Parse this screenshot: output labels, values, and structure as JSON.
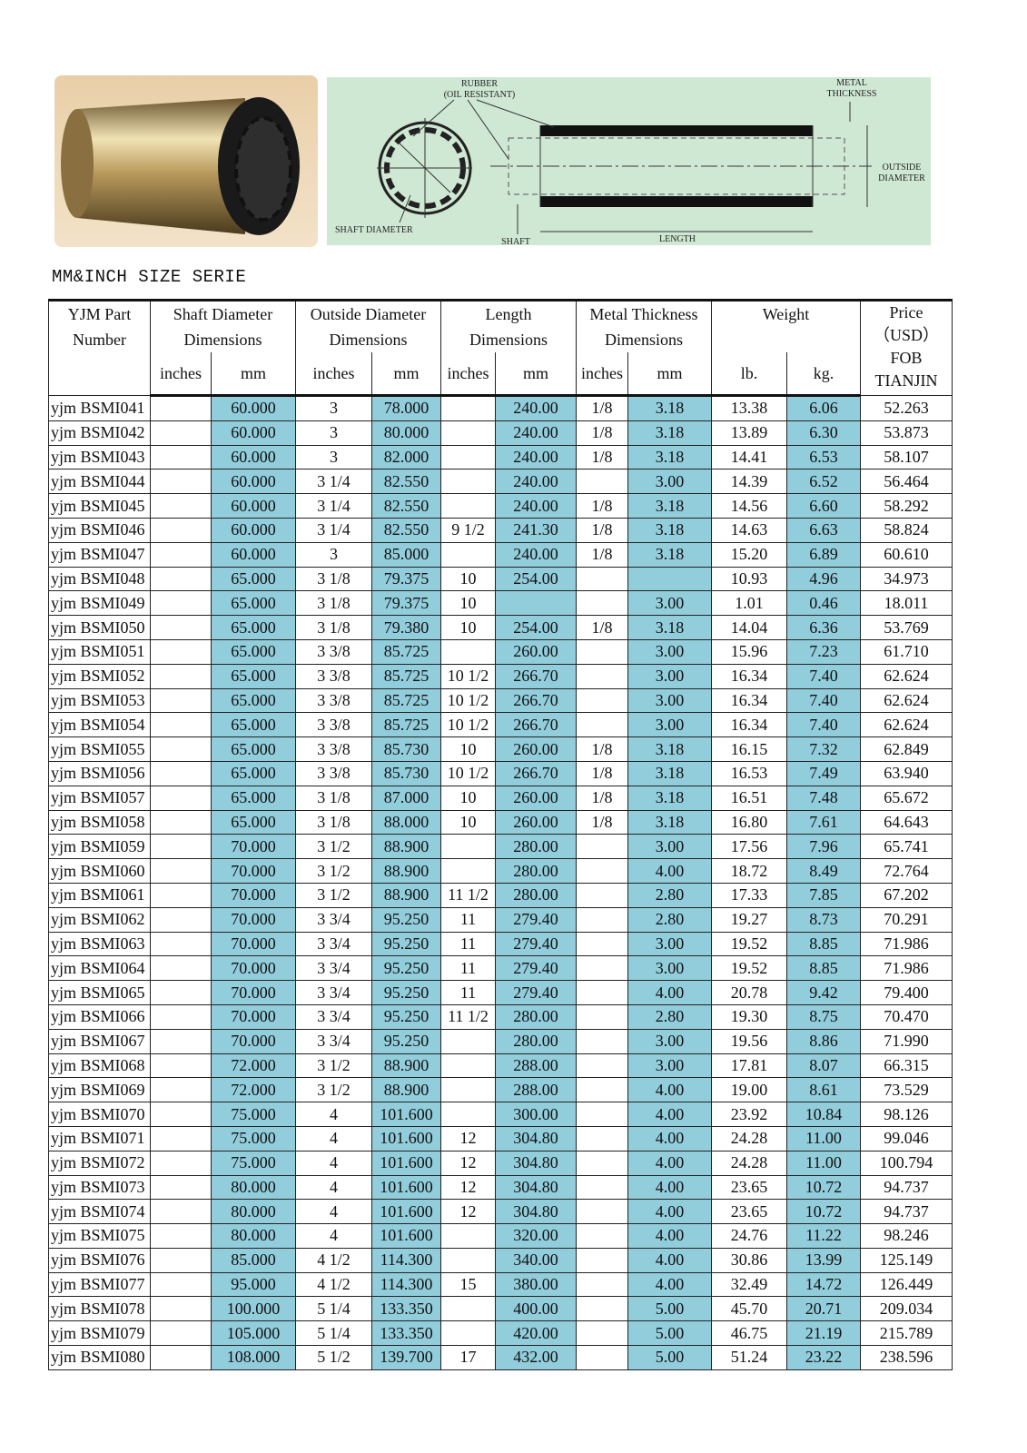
{
  "diagram": {
    "rubber": "RUBBER",
    "oil_resistant": "(OIL RESISTANT)",
    "metal": "METAL",
    "thickness": "THICKNESS",
    "outside": "OUTSIDE",
    "diameter": "DIAMETER",
    "shaft_diameter": "SHAFT DIAMETER",
    "shaft": "SHAFT",
    "length": "LENGTH"
  },
  "header": {
    "title": "MM&INCH SIZE SERIE"
  },
  "table": {
    "columns": {
      "part": [
        "YJM Part",
        "Number"
      ],
      "shaft": [
        "Shaft  Diameter",
        "Dimensions"
      ],
      "outside": [
        "Outside Diameter",
        "Dimensions"
      ],
      "length": [
        "Length",
        "Dimensions"
      ],
      "metal": [
        "Metal Thickness",
        "Dimensions"
      ],
      "weight": "Weight",
      "price": [
        "Price",
        "（USD）",
        "FOB",
        "TIANJIN"
      ]
    },
    "subcolumns": [
      "inches",
      "mm",
      "inches",
      "mm",
      "inches",
      "mm",
      "inches",
      "mm",
      "lb.",
      "kg."
    ],
    "rows": [
      [
        "yjm BSMI041",
        null,
        "60.000",
        "3",
        "78.000",
        null,
        "240.00",
        "1/8",
        "3.18",
        "13.38",
        "6.06",
        "52.263"
      ],
      [
        "yjm BSMI042",
        null,
        "60.000",
        "3",
        "80.000",
        null,
        "240.00",
        "1/8",
        "3.18",
        "13.89",
        "6.30",
        "53.873"
      ],
      [
        "yjm BSMI043",
        null,
        "60.000",
        "3",
        "82.000",
        null,
        "240.00",
        "1/8",
        "3.18",
        "14.41",
        "6.53",
        "58.107"
      ],
      [
        "yjm BSMI044",
        null,
        "60.000",
        "3 1/4",
        "82.550",
        null,
        "240.00",
        null,
        "3.00",
        "14.39",
        "6.52",
        "56.464"
      ],
      [
        "yjm BSMI045",
        null,
        "60.000",
        "3 1/4",
        "82.550",
        null,
        "240.00",
        "1/8",
        "3.18",
        "14.56",
        "6.60",
        "58.292"
      ],
      [
        "yjm BSMI046",
        null,
        "60.000",
        "3 1/4",
        "82.550",
        "9 1/2",
        "241.30",
        "1/8",
        "3.18",
        "14.63",
        "6.63",
        "58.824"
      ],
      [
        "yjm BSMI047",
        null,
        "60.000",
        "3",
        "85.000",
        null,
        "240.00",
        "1/8",
        "3.18",
        "15.20",
        "6.89",
        "60.610"
      ],
      [
        "yjm BSMI048",
        null,
        "65.000",
        "3 1/8",
        "79.375",
        "10",
        "254.00",
        null,
        null,
        "10.93",
        "4.96",
        "34.973"
      ],
      [
        "yjm BSMI049",
        null,
        "65.000",
        "3 1/8",
        "79.375",
        "10",
        null,
        null,
        "3.00",
        "1.01",
        "0.46",
        "18.011"
      ],
      [
        "yjm BSMI050",
        null,
        "65.000",
        "3 1/8",
        "79.380",
        "10",
        "254.00",
        "1/8",
        "3.18",
        "14.04",
        "6.36",
        "53.769"
      ],
      [
        "yjm BSMI051",
        null,
        "65.000",
        "3 3/8",
        "85.725",
        null,
        "260.00",
        null,
        "3.00",
        "15.96",
        "7.23",
        "61.710"
      ],
      [
        "yjm BSMI052",
        null,
        "65.000",
        "3 3/8",
        "85.725",
        "10 1/2",
        "266.70",
        null,
        "3.00",
        "16.34",
        "7.40",
        "62.624"
      ],
      [
        "yjm BSMI053",
        null,
        "65.000",
        "3 3/8",
        "85.725",
        "10 1/2",
        "266.70",
        null,
        "3.00",
        "16.34",
        "7.40",
        "62.624"
      ],
      [
        "yjm BSMI054",
        null,
        "65.000",
        "3 3/8",
        "85.725",
        "10 1/2",
        "266.70",
        null,
        "3.00",
        "16.34",
        "7.40",
        "62.624"
      ],
      [
        "yjm BSMI055",
        null,
        "65.000",
        "3 3/8",
        "85.730",
        "10",
        "260.00",
        "1/8",
        "3.18",
        "16.15",
        "7.32",
        "62.849"
      ],
      [
        "yjm BSMI056",
        null,
        "65.000",
        "3 3/8",
        "85.730",
        "10 1/2",
        "266.70",
        "1/8",
        "3.18",
        "16.53",
        "7.49",
        "63.940"
      ],
      [
        "yjm BSMI057",
        null,
        "65.000",
        "3 1/8",
        "87.000",
        "10",
        "260.00",
        "1/8",
        "3.18",
        "16.51",
        "7.48",
        "65.672"
      ],
      [
        "yjm BSMI058",
        null,
        "65.000",
        "3 1/8",
        "88.000",
        "10",
        "260.00",
        "1/8",
        "3.18",
        "16.80",
        "7.61",
        "64.643"
      ],
      [
        "yjm BSMI059",
        null,
        "70.000",
        "3 1/2",
        "88.900",
        null,
        "280.00",
        null,
        "3.00",
        "17.56",
        "7.96",
        "65.741"
      ],
      [
        "yjm BSMI060",
        null,
        "70.000",
        "3 1/2",
        "88.900",
        null,
        "280.00",
        null,
        "4.00",
        "18.72",
        "8.49",
        "72.764"
      ],
      [
        "yjm BSMI061",
        null,
        "70.000",
        "3 1/2",
        "88.900",
        "11 1/2",
        "280.00",
        null,
        "2.80",
        "17.33",
        "7.85",
        "67.202"
      ],
      [
        "yjm BSMI062",
        null,
        "70.000",
        "3 3/4",
        "95.250",
        "11",
        "279.40",
        null,
        "2.80",
        "19.27",
        "8.73",
        "70.291"
      ],
      [
        "yjm BSMI063",
        null,
        "70.000",
        "3 3/4",
        "95.250",
        "11",
        "279.40",
        null,
        "3.00",
        "19.52",
        "8.85",
        "71.986"
      ],
      [
        "yjm BSMI064",
        null,
        "70.000",
        "3 3/4",
        "95.250",
        "11",
        "279.40",
        null,
        "3.00",
        "19.52",
        "8.85",
        "71.986"
      ],
      [
        "yjm BSMI065",
        null,
        "70.000",
        "3 3/4",
        "95.250",
        "11",
        "279.40",
        null,
        "4.00",
        "20.78",
        "9.42",
        "79.400"
      ],
      [
        "yjm BSMI066",
        null,
        "70.000",
        "3 3/4",
        "95.250",
        "11 1/2",
        "280.00",
        null,
        "2.80",
        "19.30",
        "8.75",
        "70.470"
      ],
      [
        "yjm BSMI067",
        null,
        "70.000",
        "3 3/4",
        "95.250",
        null,
        "280.00",
        null,
        "3.00",
        "19.56",
        "8.86",
        "71.990"
      ],
      [
        "yjm BSMI068",
        null,
        "72.000",
        "3 1/2",
        "88.900",
        null,
        "288.00",
        null,
        "3.00",
        "17.81",
        "8.07",
        "66.315"
      ],
      [
        "yjm BSMI069",
        null,
        "72.000",
        "3 1/2",
        "88.900",
        null,
        "288.00",
        null,
        "4.00",
        "19.00",
        "8.61",
        "73.529"
      ],
      [
        "yjm BSMI070",
        null,
        "75.000",
        "4",
        "101.600",
        null,
        "300.00",
        null,
        "4.00",
        "23.92",
        "10.84",
        "98.126"
      ],
      [
        "yjm BSMI071",
        null,
        "75.000",
        "4",
        "101.600",
        "12",
        "304.80",
        null,
        "4.00",
        "24.28",
        "11.00",
        "99.046"
      ],
      [
        "yjm BSMI072",
        null,
        "75.000",
        "4",
        "101.600",
        "12",
        "304.80",
        null,
        "4.00",
        "24.28",
        "11.00",
        "100.794"
      ],
      [
        "yjm BSMI073",
        null,
        "80.000",
        "4",
        "101.600",
        "12",
        "304.80",
        null,
        "4.00",
        "23.65",
        "10.72",
        "94.737"
      ],
      [
        "yjm BSMI074",
        null,
        "80.000",
        "4",
        "101.600",
        "12",
        "304.80",
        null,
        "4.00",
        "23.65",
        "10.72",
        "94.737"
      ],
      [
        "yjm BSMI075",
        null,
        "80.000",
        "4",
        "101.600",
        null,
        "320.00",
        null,
        "4.00",
        "24.76",
        "11.22",
        "98.246"
      ],
      [
        "yjm BSMI076",
        null,
        "85.000",
        "4 1/2",
        "114.300",
        null,
        "340.00",
        null,
        "4.00",
        "30.86",
        "13.99",
        "125.149"
      ],
      [
        "yjm BSMI077",
        null,
        "95.000",
        "4 1/2",
        "114.300",
        "15",
        "380.00",
        null,
        "4.00",
        "32.49",
        "14.72",
        "126.449"
      ],
      [
        "yjm BSMI078",
        null,
        "100.000",
        "5 1/4",
        "133.350",
        null,
        "400.00",
        null,
        "5.00",
        "45.70",
        "20.71",
        "209.034"
      ],
      [
        "yjm BSMI079",
        null,
        "105.000",
        "5 1/4",
        "133.350",
        null,
        "420.00",
        null,
        "5.00",
        "46.75",
        "21.19",
        "215.789"
      ],
      [
        "yjm BSMI080",
        null,
        "108.000",
        "5 1/2",
        "139.700",
        "17",
        "432.00",
        null,
        "5.00",
        "51.24",
        "23.22",
        "238.596"
      ]
    ]
  }
}
